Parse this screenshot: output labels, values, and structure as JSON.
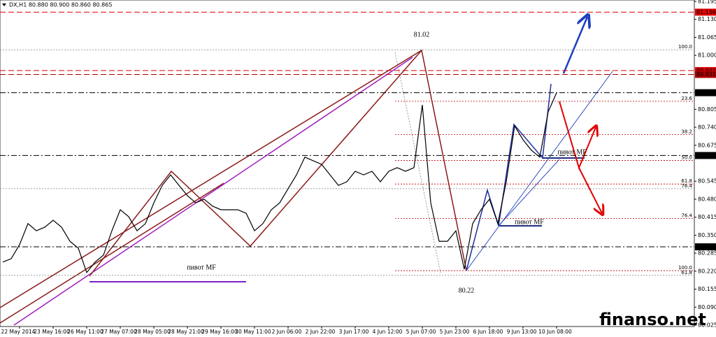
{
  "chart_data": {
    "type": "line",
    "title": "DX,H1  80.880 80.900 80.860 80.865",
    "categories": [
      null,
      null,
      "22 May 2014",
      null,
      null,
      null,
      "23 May 16:00",
      null,
      null,
      null,
      "26 May 11:00",
      null,
      null,
      null,
      "27 May 07:00",
      null,
      null,
      null,
      "28 May 05:00",
      null,
      null,
      null,
      "28 May 21:00",
      null,
      null,
      null,
      "29 May 16:00",
      null,
      null,
      null,
      "30 May 11:00",
      null,
      null,
      null,
      "2 Jun 06:00",
      null,
      null,
      null,
      "2 Jun 22:00",
      null,
      null,
      null,
      "3 Jun 17:00",
      null,
      null,
      null,
      "4 Jun 12:00",
      null,
      null,
      null,
      "5 Jun 07:00",
      null,
      null,
      null,
      "5 Jun 23:00",
      null,
      null,
      null,
      "6 Jun 18:00",
      null,
      null,
      null,
      "9 Jun 13:00",
      null,
      null,
      null,
      "10 Jun 08:00"
    ],
    "series": [
      {
        "color": "#000000",
        "values": [
          80.253,
          80.265,
          80.316,
          80.392,
          80.366,
          80.379,
          80.404,
          80.379,
          80.328,
          80.303,
          80.215,
          80.253,
          80.278,
          80.366,
          80.442,
          80.417,
          80.366,
          80.392,
          80.467,
          80.53,
          80.568,
          80.53,
          80.493,
          80.467,
          80.48,
          80.455,
          80.442,
          80.442,
          80.442,
          80.429,
          80.366,
          80.392,
          80.442,
          80.467,
          80.518,
          80.568,
          80.632,
          80.619,
          80.606,
          80.568,
          80.53,
          80.543,
          80.581,
          80.568,
          80.581,
          80.543,
          80.581,
          80.594,
          80.581,
          80.594,
          80.821,
          80.467,
          80.328,
          80.328,
          80.366,
          80.227,
          80.392,
          80.442,
          80.48,
          80.392,
          80.543,
          80.745,
          80.695,
          80.657,
          80.632,
          80.796,
          80.865
        ]
      }
    ],
    "ylim": [
      80.02,
      81.2
    ],
    "yticks": [
      81.195,
      {
        "value": 81.13,
        "label": "81.130"
      },
      81.065,
      {
        "value": 81.0,
        "label": "81.000"
      },
      80.805,
      {
        "value": 80.74,
        "label": "80.740"
      },
      80.675,
      80.545,
      {
        "value": 80.48,
        "label": "80.480"
      },
      80.415,
      {
        "value": 80.35,
        "label": "80.350"
      },
      80.285,
      {
        "value": 80.22,
        "label": "80.220"
      },
      80.155,
      {
        "value": 80.09,
        "label": "80.090"
      },
      80.025
    ],
    "levels": [
      {
        "value": 81.156,
        "color": "#e00000"
      },
      {
        "value": 80.945,
        "color": "#e00000"
      },
      {
        "value": 80.931,
        "color": "#b00000"
      },
      {
        "value": 80.865,
        "color": "#000000"
      },
      {
        "value": 80.638,
        "color": "#000000"
      },
      {
        "value": 80.308,
        "color": "#000000"
      }
    ],
    "fib_levels": [
      {
        "value": 81.02,
        "label": "100.0",
        "color": "#808080"
      },
      {
        "value": 80.834,
        "label": "23.6",
        "color": "#c00000"
      },
      {
        "value": 80.714,
        "label": "38.2",
        "color": "#c00000"
      },
      {
        "value": 80.62,
        "label": "50.0",
        "color": "#c00000"
      },
      {
        "value": 80.535,
        "label": "61.8",
        "color": "#c00000"
      },
      {
        "value": 80.518,
        "label": "76.4",
        "color": "#808080"
      },
      {
        "value": 80.41,
        "label": "76.4",
        "color": "#c00000"
      },
      {
        "value": 80.222,
        "label": "100.0",
        "color": "#c00000"
      },
      {
        "value": 80.205,
        "label": "61.8",
        "color": "#808080"
      }
    ],
    "annotations": [
      "81.02",
      "80.22",
      "пивот MF",
      "пивот MF",
      "пивот MF"
    ],
    "watermark": "finanso.net"
  }
}
